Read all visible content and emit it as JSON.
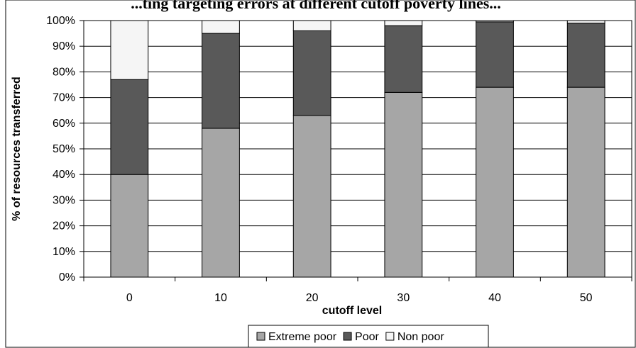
{
  "chart_data": {
    "type": "bar",
    "stacked": true,
    "title": "...ting targeting errors at different cutoff poverty lines...",
    "xlabel": "cutoff level",
    "ylabel": "% of resources transferred",
    "categories": [
      "0",
      "10",
      "20",
      "30",
      "40",
      "50"
    ],
    "ylim": [
      0,
      100
    ],
    "yticks": [
      "0%",
      "10%",
      "20%",
      "30%",
      "40%",
      "50%",
      "60%",
      "70%",
      "80%",
      "90%",
      "100%"
    ],
    "grid": true,
    "legend_position": "bottom",
    "series": [
      {
        "name": "Extreme poor",
        "color": "#a6a6a6",
        "values": [
          40,
          58,
          63,
          72,
          74,
          74
        ]
      },
      {
        "name": "Poor",
        "color": "#595959",
        "values": [
          37,
          37,
          33,
          26,
          25.5,
          25
        ]
      },
      {
        "name": "Non poor",
        "color": "#f5f5f5",
        "values": [
          23,
          5,
          4,
          2,
          0.5,
          1
        ]
      }
    ]
  }
}
